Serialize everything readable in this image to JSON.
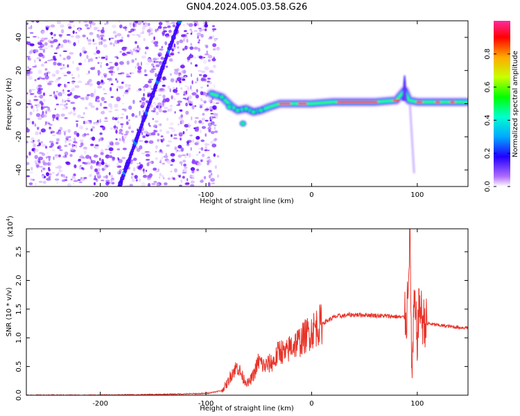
{
  "title": "GN04.2024.005.03.58.G26",
  "chart_data": [
    {
      "type": "heatmap",
      "xlabel": "Height of straight line (km)",
      "ylabel": "Frequency (Hz)",
      "xlim": [
        -270,
        148
      ],
      "ylim": [
        -50,
        50
      ],
      "x_ticks": [
        -200,
        -100,
        0,
        100
      ],
      "x_tick_labels": [
        "-200",
        "-100",
        "0",
        "100"
      ],
      "y_ticks": [
        -40,
        -20,
        0,
        20,
        40
      ],
      "y_tick_labels": [
        "-40",
        "-20",
        "0",
        "20",
        "40"
      ],
      "colorbar": {
        "label": "Normalized spectral amplitude",
        "range": [
          0,
          1
        ],
        "ticks": [
          0.0,
          0.2,
          0.4,
          0.6,
          0.8
        ],
        "tick_labels": [
          "0.0",
          "0.2",
          "0.4",
          "0.6",
          "0.8"
        ],
        "colormap": "rainbow"
      },
      "features": {
        "noise_region_x": [
          -270,
          -95
        ],
        "diagonal_streak": [
          [
            -182,
            -50
          ],
          [
            -125,
            50
          ]
        ],
        "signal_track": [
          [
            -95,
            6
          ],
          [
            -85,
            4
          ],
          [
            -80,
            1
          ],
          [
            -75,
            -2
          ],
          [
            -70,
            -4
          ],
          [
            -62,
            -3
          ],
          [
            -55,
            -5
          ],
          [
            -48,
            -4
          ],
          [
            -40,
            -2
          ],
          [
            -30,
            0
          ],
          [
            -20,
            0
          ],
          [
            0,
            0
          ],
          [
            20,
            1
          ],
          [
            40,
            1
          ],
          [
            60,
            1
          ],
          [
            80,
            2
          ],
          [
            88,
            8
          ],
          [
            92,
            2
          ],
          [
            100,
            1
          ],
          [
            120,
            1
          ],
          [
            148,
            1
          ]
        ],
        "spike": {
          "x": 88,
          "f_max": 17
        },
        "tail": [
          [
            93,
            0
          ],
          [
            97,
            -42
          ]
        ]
      }
    },
    {
      "type": "line",
      "xlabel": "Height of straight line (km)",
      "ylabel": "SNR (10 * v/v)",
      "y_exponent_label": "(x10",
      "y_exponent_power": "4",
      "y_exponent_close": ")",
      "xlim": [
        -270,
        148
      ],
      "ylim": [
        0,
        2.9
      ],
      "x_ticks": [
        -200,
        -100,
        0,
        100
      ],
      "x_tick_labels": [
        "-200",
        "-100",
        "0",
        "100"
      ],
      "y_ticks": [
        0.0,
        0.5,
        1.0,
        1.5,
        2.0,
        2.5
      ],
      "y_tick_labels": [
        "0.0",
        "0.5",
        "1.0",
        "1.5",
        "2.0",
        "2.5"
      ],
      "series": [
        {
          "color": "#e8342a",
          "x": [
            -270,
            -200,
            -150,
            -100,
            -85,
            -80,
            -75,
            -70,
            -65,
            -60,
            -55,
            -50,
            -45,
            -40,
            -35,
            -30,
            -25,
            -20,
            -15,
            -10,
            -5,
            0,
            5,
            10,
            15,
            20,
            25,
            30,
            35,
            40,
            50,
            60,
            70,
            80,
            85,
            90,
            93,
            95,
            97,
            100,
            102,
            105,
            110,
            120,
            130,
            140,
            148
          ],
          "values": [
            0.0,
            0.0,
            0.01,
            0.03,
            0.08,
            0.2,
            0.4,
            0.5,
            0.3,
            0.2,
            0.35,
            0.6,
            0.5,
            0.55,
            0.6,
            0.8,
            0.7,
            0.85,
            0.9,
            0.95,
            1.05,
            1.12,
            1.2,
            1.25,
            1.3,
            1.35,
            1.38,
            1.38,
            1.4,
            1.4,
            1.4,
            1.39,
            1.38,
            1.37,
            1.36,
            1.35,
            2.9,
            0.2,
            1.6,
            1.0,
            1.6,
            1.3,
            1.25,
            1.22,
            1.2,
            1.18,
            1.18
          ]
        }
      ]
    }
  ]
}
